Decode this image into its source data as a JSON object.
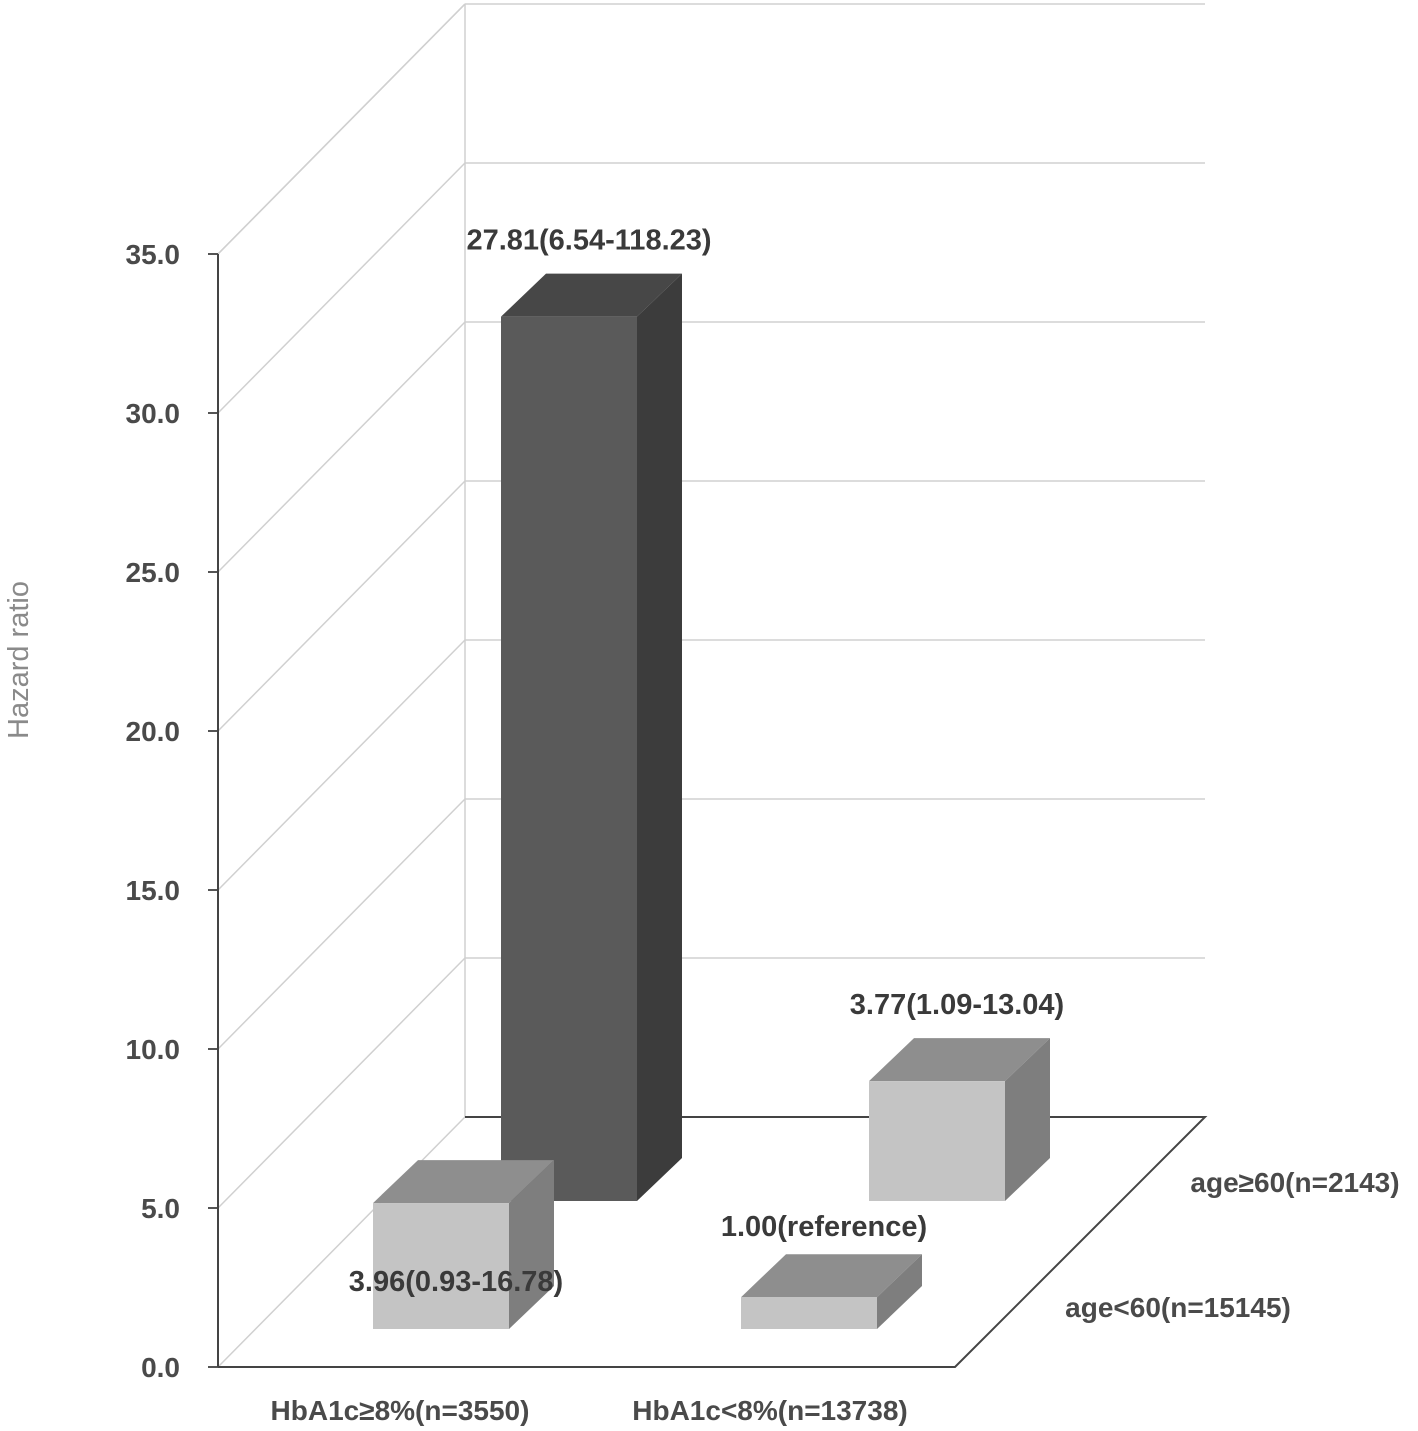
{
  "chart_data": {
    "type": "bar",
    "ylabel": "Hazard ratio",
    "ylim": [
      0,
      35
    ],
    "yticks": [
      "0.0",
      "5.0",
      "10.0",
      "15.0",
      "20.0",
      "25.0",
      "30.0",
      "35.0"
    ],
    "grid": true,
    "categories": [
      "HbA1c≥8%(n=3550)",
      "HbA1c<8%(n=13738)"
    ],
    "depth_categories": [
      "age<60(n=15145)",
      "age≥60(n=2143)"
    ],
    "bars": [
      {
        "category": "HbA1c≥8%(n=3550)",
        "depth": "age≥60(n=2143)",
        "value": 27.81,
        "label": "27.81(6.54-118.23)",
        "color": "#5a5a5a",
        "side": "#3c3c3c",
        "top": "#474747"
      },
      {
        "category": "HbA1c≥8%(n=3550)",
        "depth": "age<60(n=15145)",
        "value": 3.96,
        "label": "3.96(0.93-16.78)",
        "color": "#c4c4c4",
        "side": "#7e7e7e",
        "top": "#8e8e8e"
      },
      {
        "category": "HbA1c<8%(n=13738)",
        "depth": "age≥60(n=2143)",
        "value": 3.77,
        "label": "3.77(1.09-13.04)",
        "color": "#c4c4c4",
        "side": "#7e7e7e",
        "top": "#8e8e8e"
      },
      {
        "category": "HbA1c<8%(n=13738)",
        "depth": "age<60(n=15145)",
        "value": 1.0,
        "label": "1.00(reference)",
        "color": "#c4c4c4",
        "side": "#7e7e7e",
        "top": "#8e8e8e"
      }
    ]
  }
}
